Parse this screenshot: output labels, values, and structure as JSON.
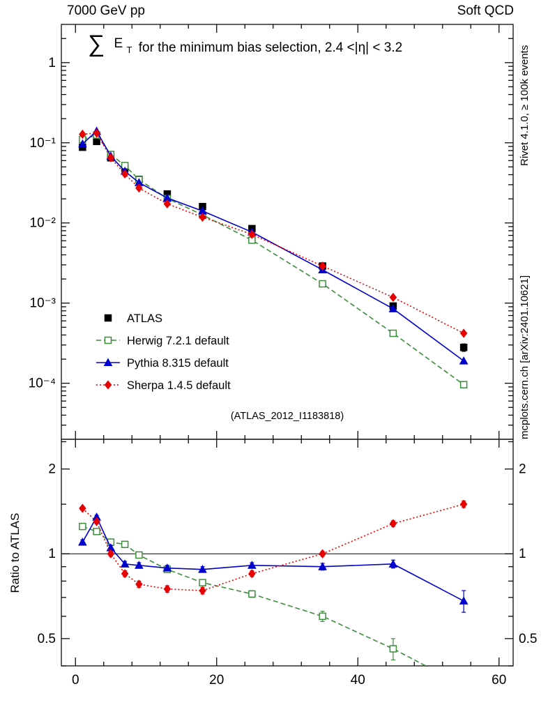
{
  "chart_data": {
    "type": "line",
    "header": {
      "left": "7000 GeV pp",
      "right": "Soft QCD"
    },
    "title_parts": {
      "sum": "∑",
      "observable": "E",
      "subscript": "T",
      "rest": " for the minimum bias selection, 2.4 <|η| < 3.2"
    },
    "right_labels": {
      "top": "Rivet 4.1.0, ≥ 100k events",
      "bottom": "mcplots.cern.ch [arXiv:2401.10621]"
    },
    "watermark": "(ATLAS_2012_I1183818)",
    "x_axis": {
      "lim": [
        -2,
        62
      ],
      "major_ticks": [
        0,
        20,
        40,
        60
      ],
      "labels": [
        "0",
        "20",
        "40",
        "60"
      ],
      "minor_step": 4
    },
    "main_panel": {
      "ylog": true,
      "ylim": [
        2e-05,
        3
      ],
      "yticks": [
        {
          "v": 1,
          "label": "1"
        },
        {
          "v": 0.1,
          "label": "10⁻¹"
        },
        {
          "v": 0.01,
          "label": "10⁻²"
        },
        {
          "v": 0.001,
          "label": "10⁻³"
        },
        {
          "v": 0.0001,
          "label": "10⁻⁴"
        }
      ]
    },
    "ratio_panel": {
      "ylabel": "Ratio to ATLAS",
      "ylog": true,
      "ylim": [
        0.4,
        2.55
      ],
      "yticks": [
        {
          "v": 0.5,
          "label": "0.5"
        },
        {
          "v": 1,
          "label": "1"
        },
        {
          "v": 2,
          "label": "2"
        }
      ],
      "minor_ticks": [
        0.4,
        0.6,
        0.7,
        0.8,
        0.9,
        1.5,
        2.5
      ],
      "baseline": 1
    },
    "x": [
      1,
      3,
      5,
      7,
      9,
      13,
      18,
      25,
      35,
      45,
      55
    ],
    "series": [
      {
        "name": "ATLAS",
        "color": "#000000",
        "marker": "square",
        "fill": "filled",
        "line": "none",
        "values": [
          0.088,
          0.104,
          0.065,
          0.048,
          0.035,
          0.023,
          0.016,
          0.0085,
          0.0029,
          0.00092,
          0.00028
        ],
        "yerr": [
          0.005,
          0.005,
          0.003,
          0.002,
          0.0015,
          0.001,
          0.0007,
          0.0004,
          0.00015,
          6e-05,
          3e-05
        ],
        "ratio": null
      },
      {
        "name": "Herwig 7.2.1 default",
        "color": "#3b8c3b",
        "marker": "square",
        "fill": "open",
        "line": "dashed",
        "values": [
          0.11,
          0.125,
          0.0715,
          0.052,
          0.0347,
          0.0202,
          0.0126,
          0.0061,
          0.00174,
          0.00042,
          9.6e-05
        ],
        "ratio": [
          1.25,
          1.2,
          1.1,
          1.08,
          0.99,
          0.88,
          0.79,
          0.72,
          0.6,
          0.46,
          0.34
        ],
        "ratio_err": [
          0.02,
          0.02,
          0.02,
          0.02,
          0.02,
          0.02,
          0.02,
          0.02,
          0.025,
          0.04,
          0.05
        ]
      },
      {
        "name": "Pythia 8.315 default",
        "color": "#0000cc",
        "marker": "triangle",
        "fill": "filled",
        "line": "solid",
        "values": [
          0.097,
          0.14,
          0.0683,
          0.0442,
          0.0319,
          0.0205,
          0.0141,
          0.0077,
          0.0026,
          0.00085,
          0.00019
        ],
        "ratio": [
          1.1,
          1.35,
          1.05,
          0.92,
          0.91,
          0.89,
          0.88,
          0.91,
          0.9,
          0.92,
          0.68
        ],
        "ratio_err": [
          0.02,
          0.02,
          0.02,
          0.02,
          0.02,
          0.02,
          0.02,
          0.02,
          0.025,
          0.03,
          0.06
        ]
      },
      {
        "name": "Sherpa 1.4.5 default",
        "color": "#e60000",
        "marker": "diamond",
        "fill": "filled",
        "line": "dotted",
        "values": [
          0.128,
          0.132,
          0.065,
          0.0408,
          0.0273,
          0.0173,
          0.0118,
          0.0072,
          0.0029,
          0.00118,
          0.00042
        ],
        "ratio": [
          1.45,
          1.3,
          1.0,
          0.85,
          0.78,
          0.75,
          0.74,
          0.85,
          1.0,
          1.28,
          1.5
        ],
        "ratio_err": [
          0.02,
          0.02,
          0.02,
          0.02,
          0.02,
          0.02,
          0.02,
          0.02,
          0.02,
          0.03,
          0.04
        ]
      }
    ]
  }
}
